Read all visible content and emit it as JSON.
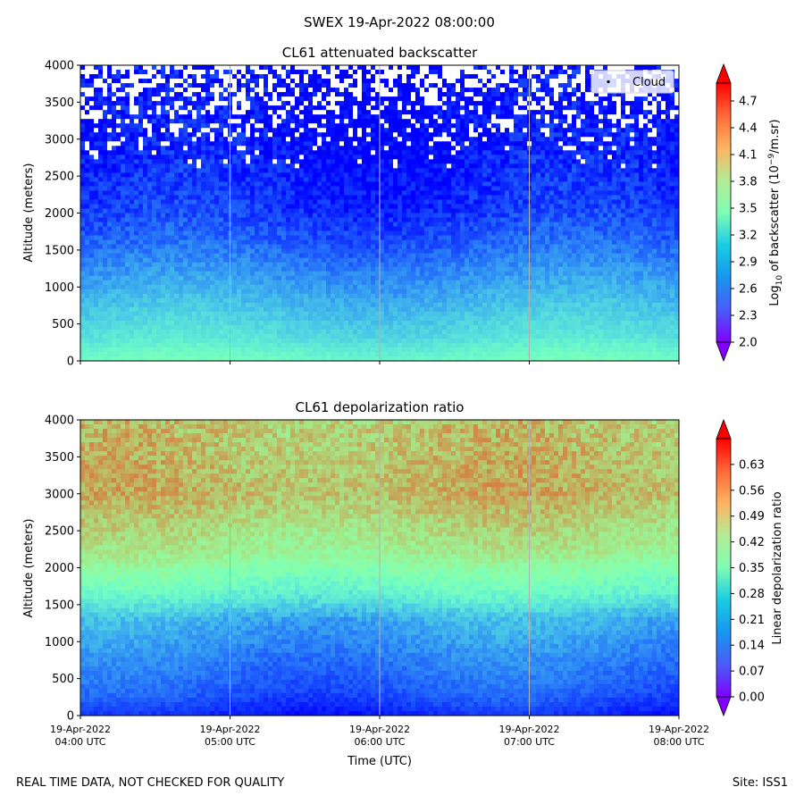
{
  "figure": {
    "suptitle": "SWEX 19-Apr-2022 08:00:00",
    "footer_left": "REAL TIME DATA, NOT CHECKED FOR QUALITY",
    "footer_right": "Site: ISS1"
  },
  "chart_data": [
    {
      "type": "heatmap",
      "title": "CL61 attenuated backscatter",
      "xlabel": "",
      "ylabel": "Altitude (meters)",
      "y_ticks": [
        0,
        500,
        1000,
        1500,
        2000,
        2500,
        3000,
        3500,
        4000
      ],
      "ylim": [
        0,
        4000
      ],
      "x_ticks": [
        "19-Apr-2022 04:00 UTC",
        "19-Apr-2022 05:00 UTC",
        "19-Apr-2022 06:00 UTC",
        "19-Apr-2022 07:00 UTC",
        "19-Apr-2022 08:00 UTC"
      ],
      "x_tick_labels_shown": false,
      "grid": "vertical",
      "legend": {
        "entries": [
          "Cloud"
        ],
        "placement": "top-right"
      },
      "colorbar": {
        "label_prefix": "Log",
        "label_sub": "10",
        "label_mid": " of backscatter (10",
        "label_sup": "−9",
        "label_suffix": "/m.sr)",
        "ticks": [
          "2.0",
          "2.3",
          "2.6",
          "2.9",
          "3.2",
          "3.5",
          "3.8",
          "4.1",
          "4.4",
          "4.7"
        ],
        "range": [
          2.0,
          4.9
        ],
        "extend": "both",
        "colormap": "rainbow"
      },
      "profile": [
        {
          "altitude": 0,
          "value": 3.3
        },
        {
          "altitude": 300,
          "value": 3.0
        },
        {
          "altitude": 700,
          "value": 2.8
        },
        {
          "altitude": 1100,
          "value": 2.6
        },
        {
          "altitude": 1500,
          "value": 2.4
        },
        {
          "altitude": 2000,
          "value": 2.2
        },
        {
          "altitude": 3000,
          "value": 2.05
        },
        {
          "altitude": 4000,
          "value": 2.0
        }
      ]
    },
    {
      "type": "heatmap",
      "title": "CL61 depolarization ratio",
      "xlabel": "Time (UTC)",
      "ylabel": "Altitude (meters)",
      "y_ticks": [
        0,
        500,
        1000,
        1500,
        2000,
        2500,
        3000,
        3500,
        4000
      ],
      "ylim": [
        0,
        4000
      ],
      "x_ticks": [
        "19-Apr-2022 04:00 UTC",
        "19-Apr-2022 05:00 UTC",
        "19-Apr-2022 06:00 UTC",
        "19-Apr-2022 07:00 UTC",
        "19-Apr-2022 08:00 UTC"
      ],
      "x_tick_labels_shown": true,
      "grid": "vertical",
      "colorbar": {
        "label": "Linear depolarization ratio",
        "ticks": [
          "0.00",
          "0.07",
          "0.14",
          "0.21",
          "0.28",
          "0.35",
          "0.42",
          "0.49",
          "0.56",
          "0.63"
        ],
        "range": [
          0.0,
          0.7
        ],
        "extend": "both",
        "colormap": "rainbow"
      },
      "profile": [
        {
          "altitude": 0,
          "value": 0.03
        },
        {
          "altitude": 300,
          "value": 0.08
        },
        {
          "altitude": 800,
          "value": 0.12
        },
        {
          "altitude": 1300,
          "value": 0.17
        },
        {
          "altitude": 1700,
          "value": 0.3
        },
        {
          "altitude": 2200,
          "value": 0.43
        },
        {
          "altitude": 3000,
          "value": 0.52
        },
        {
          "altitude": 4000,
          "value": 0.5
        }
      ]
    }
  ]
}
